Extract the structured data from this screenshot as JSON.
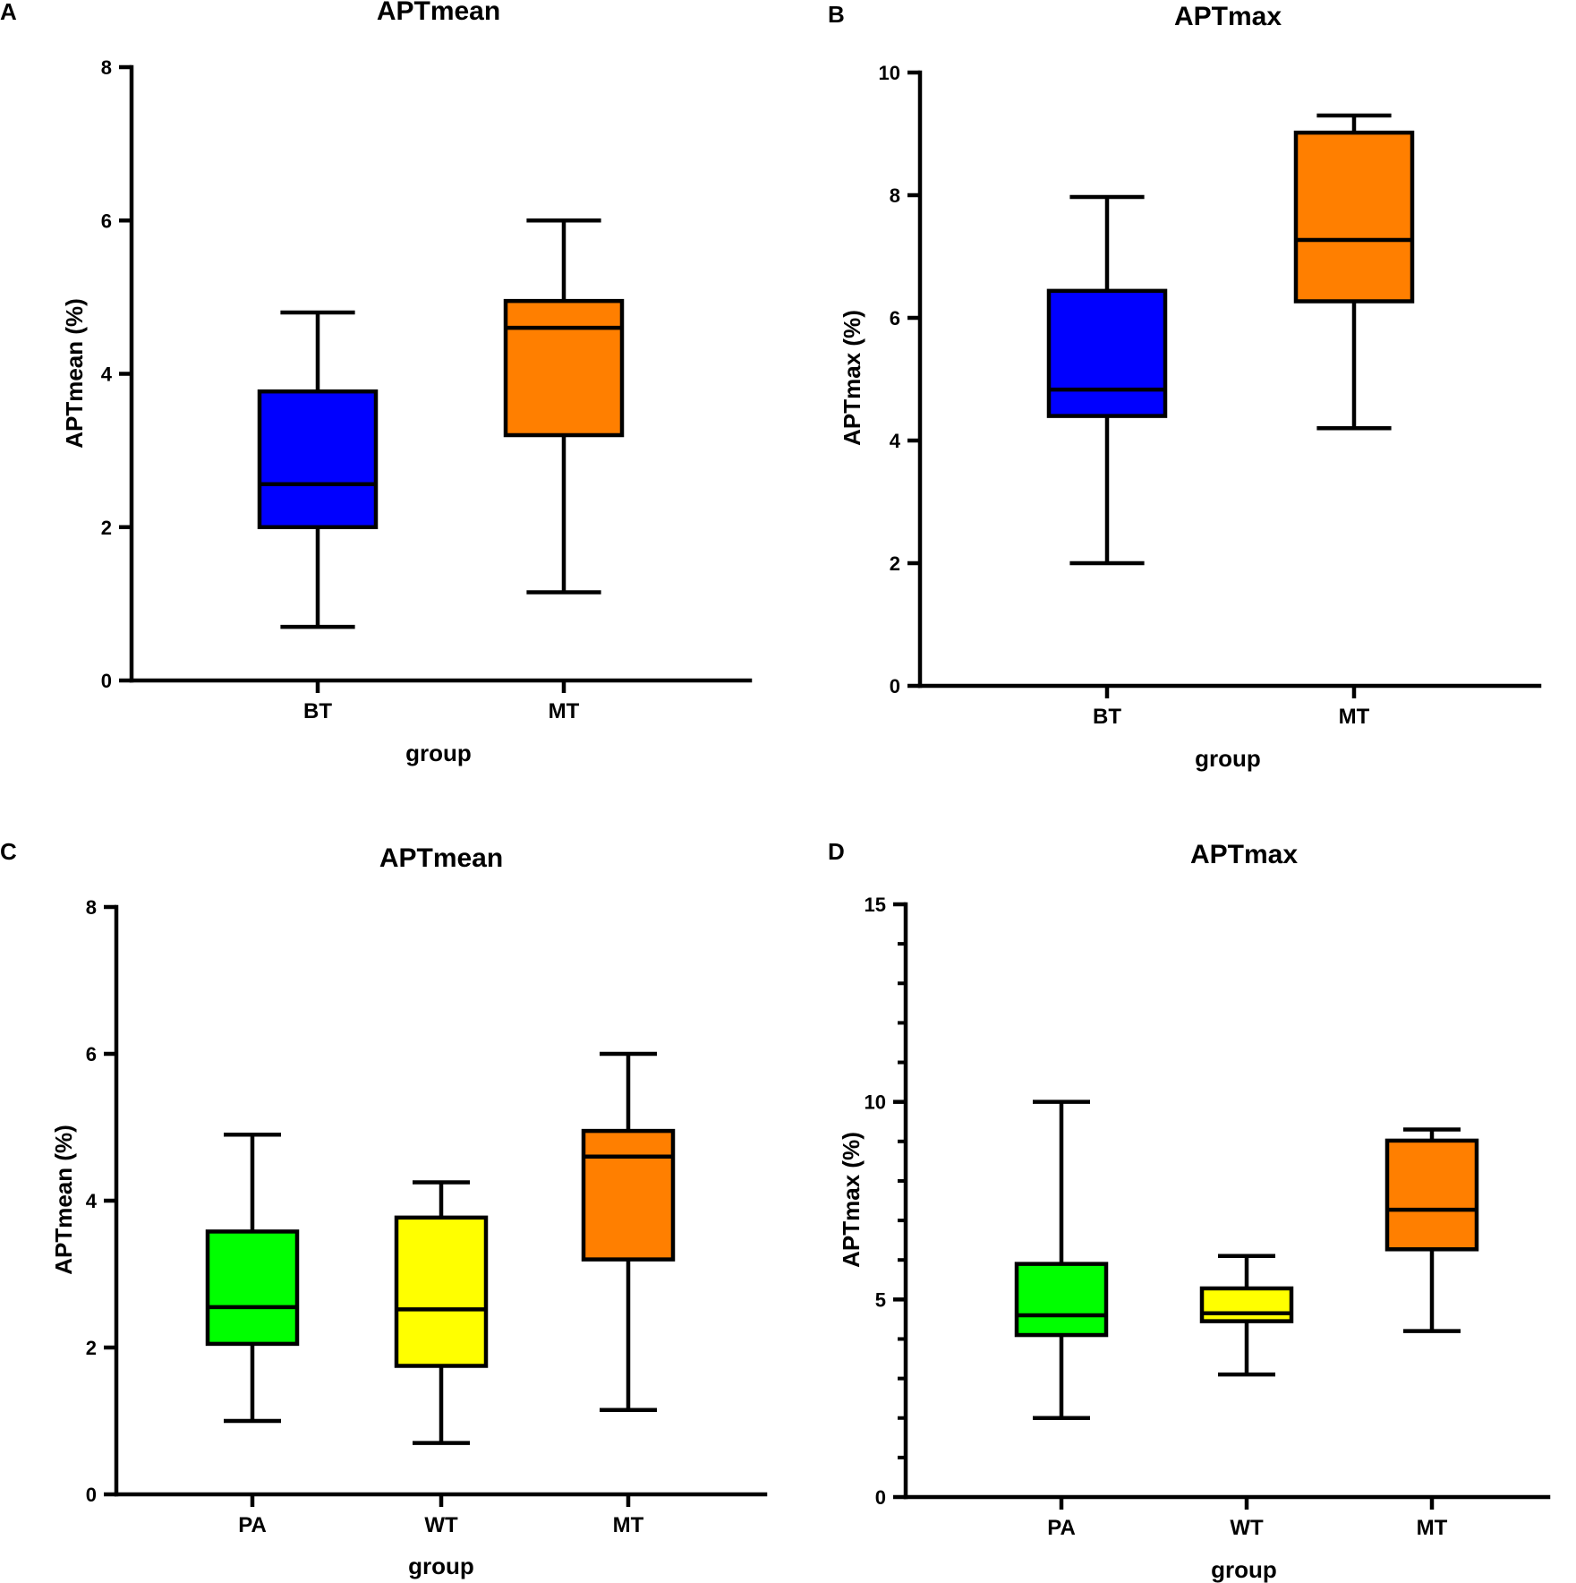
{
  "chart_data": [
    {
      "panel": "A",
      "type": "box",
      "title": "APTmean",
      "xlabel": "group",
      "ylabel": "APTmean (%)",
      "ylim": [
        0,
        8
      ],
      "yticks": [
        0,
        2,
        4,
        6,
        8
      ],
      "minor_ticks": [],
      "categories": [
        "BT",
        "MT"
      ],
      "boxes": [
        {
          "name": "BT",
          "min": 0.7,
          "q1": 2.0,
          "median": 2.56,
          "q3": 3.77,
          "max": 4.8,
          "color": "#0000ff"
        },
        {
          "name": "MT",
          "min": 1.15,
          "q1": 3.2,
          "median": 4.6,
          "q3": 4.95,
          "max": 6.0,
          "color": "#ff7f00"
        }
      ]
    },
    {
      "panel": "B",
      "type": "box",
      "title": "APTmax",
      "xlabel": "group",
      "ylabel": "APTmax (%)",
      "ylim": [
        0,
        10
      ],
      "yticks": [
        0,
        2,
        4,
        6,
        8,
        10
      ],
      "minor_ticks": [],
      "categories": [
        "BT",
        "MT"
      ],
      "boxes": [
        {
          "name": "BT",
          "min": 2.0,
          "q1": 4.4,
          "median": 4.83,
          "q3": 6.44,
          "max": 7.97,
          "color": "#0000ff"
        },
        {
          "name": "MT",
          "min": 4.2,
          "q1": 6.27,
          "median": 7.27,
          "q3": 9.02,
          "max": 9.3,
          "color": "#ff7f00"
        }
      ]
    },
    {
      "panel": "C",
      "type": "box",
      "title": "APTmean",
      "xlabel": "group",
      "ylabel": "APTmean (%)",
      "ylim": [
        0,
        8
      ],
      "yticks": [
        0,
        2,
        4,
        6,
        8
      ],
      "minor_ticks": [],
      "categories": [
        "PA",
        "WT",
        "MT"
      ],
      "boxes": [
        {
          "name": "PA",
          "min": 1.0,
          "q1": 2.05,
          "median": 2.55,
          "q3": 3.58,
          "max": 4.9,
          "color": "#00ff00"
        },
        {
          "name": "WT",
          "min": 0.7,
          "q1": 1.75,
          "median": 2.52,
          "q3": 3.77,
          "max": 4.25,
          "color": "#ffff00"
        },
        {
          "name": "MT",
          "min": 1.15,
          "q1": 3.2,
          "median": 4.6,
          "q3": 4.95,
          "max": 6.0,
          "color": "#ff7f00"
        }
      ]
    },
    {
      "panel": "D",
      "type": "box",
      "title": "APTmax",
      "xlabel": "group",
      "ylabel": "APTmax (%)",
      "ylim": [
        0,
        15
      ],
      "yticks": [
        0,
        5,
        10,
        15
      ],
      "minor_ticks": [
        1,
        2,
        3,
        4,
        6,
        7,
        8,
        9,
        11,
        12,
        13,
        14
      ],
      "categories": [
        "PA",
        "WT",
        "MT"
      ],
      "boxes": [
        {
          "name": "PA",
          "min": 2.0,
          "q1": 4.1,
          "median": 4.6,
          "q3": 5.9,
          "max": 10.0,
          "color": "#00ff00"
        },
        {
          "name": "WT",
          "min": 3.1,
          "q1": 4.45,
          "median": 4.65,
          "q3": 5.28,
          "max": 6.1,
          "color": "#ffff00"
        },
        {
          "name": "MT",
          "min": 4.2,
          "q1": 6.27,
          "median": 7.27,
          "q3": 9.02,
          "max": 9.3,
          "color": "#ff7f00"
        }
      ]
    }
  ]
}
